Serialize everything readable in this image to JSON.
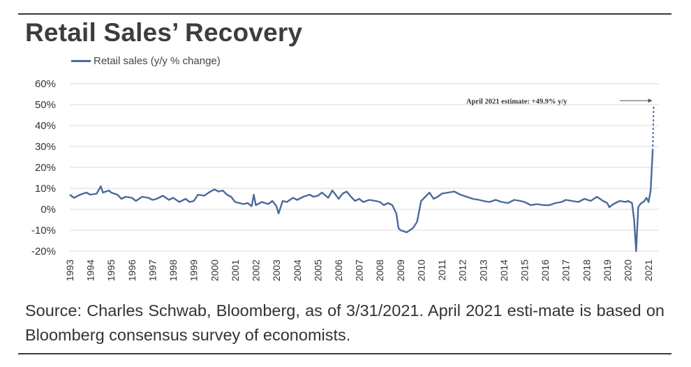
{
  "title": "Retail Sales’ Recovery",
  "source_text": "Source: Charles Schwab, Bloomberg, as of 3/31/2021. April 2021 esti-mate is based on Bloomberg consensus survey of economists.",
  "colors": {
    "series": "#4a6a9c",
    "grid": "#d9d9d9",
    "text": "#333333"
  },
  "chart_data": {
    "type": "line",
    "title": "",
    "xlabel": "",
    "ylabel": "",
    "ylim": [
      -20,
      60
    ],
    "xlim": [
      1993,
      2021.5
    ],
    "grid": true,
    "legend_placement": "top-left",
    "y_ticks": [
      60,
      50,
      40,
      30,
      20,
      10,
      0,
      -10,
      -20
    ],
    "y_tick_labels": [
      "60%",
      "50%",
      "40%",
      "30%",
      "20%",
      "10%",
      "0%",
      "-10%",
      "-20%"
    ],
    "x_tick_labels": [
      "1993",
      "1994",
      "1995",
      "1996",
      "1997",
      "1998",
      "1999",
      "2000",
      "2001",
      "2002",
      "2003",
      "2004",
      "2005",
      "2006",
      "2007",
      "2008",
      "2009",
      "2010",
      "2011",
      "2012",
      "2013",
      "2014",
      "2015",
      "2016",
      "2017",
      "2018",
      "2019",
      "2020",
      "2021"
    ],
    "annotation": {
      "text": "April 2021 estimate: +49.9% y/y",
      "x": 2021.25,
      "y": 49.9
    },
    "series": [
      {
        "name": "Retail sales (y/y % change)",
        "points": [
          [
            1993.0,
            7
          ],
          [
            1993.2,
            5.5
          ],
          [
            1993.5,
            7
          ],
          [
            1993.8,
            8
          ],
          [
            1994.0,
            7
          ],
          [
            1994.3,
            7.5
          ],
          [
            1994.5,
            11
          ],
          [
            1994.6,
            8
          ],
          [
            1994.9,
            9
          ],
          [
            1995.0,
            8
          ],
          [
            1995.3,
            7
          ],
          [
            1995.5,
            5
          ],
          [
            1995.7,
            6
          ],
          [
            1996.0,
            5.5
          ],
          [
            1996.2,
            4
          ],
          [
            1996.5,
            6
          ],
          [
            1996.8,
            5.5
          ],
          [
            1997.0,
            4.5
          ],
          [
            1997.2,
            5
          ],
          [
            1997.5,
            6.5
          ],
          [
            1997.8,
            4.5
          ],
          [
            1998.0,
            5.5
          ],
          [
            1998.3,
            3.5
          ],
          [
            1998.6,
            5
          ],
          [
            1998.8,
            3.5
          ],
          [
            1999.0,
            4
          ],
          [
            1999.2,
            7
          ],
          [
            1999.5,
            6.5
          ],
          [
            1999.8,
            8.5
          ],
          [
            2000.0,
            9.5
          ],
          [
            2000.2,
            8.5
          ],
          [
            2000.4,
            9
          ],
          [
            2000.6,
            7
          ],
          [
            2000.8,
            6
          ],
          [
            2001.0,
            3.5
          ],
          [
            2001.2,
            3
          ],
          [
            2001.4,
            2.5
          ],
          [
            2001.6,
            3
          ],
          [
            2001.8,
            1.5
          ],
          [
            2001.9,
            7
          ],
          [
            2002.0,
            2
          ],
          [
            2002.3,
            3.5
          ],
          [
            2002.6,
            2.5
          ],
          [
            2002.8,
            4
          ],
          [
            2003.0,
            1.5
          ],
          [
            2003.1,
            -2
          ],
          [
            2003.3,
            4
          ],
          [
            2003.5,
            3.5
          ],
          [
            2003.8,
            5.5
          ],
          [
            2004.0,
            4.5
          ],
          [
            2004.3,
            6
          ],
          [
            2004.6,
            7
          ],
          [
            2004.8,
            6
          ],
          [
            2005.0,
            6.5
          ],
          [
            2005.2,
            8
          ],
          [
            2005.5,
            5.5
          ],
          [
            2005.7,
            9
          ],
          [
            2005.9,
            6.5
          ],
          [
            2006.0,
            5
          ],
          [
            2006.2,
            7.5
          ],
          [
            2006.4,
            8.5
          ],
          [
            2006.6,
            6
          ],
          [
            2006.8,
            4
          ],
          [
            2007.0,
            5
          ],
          [
            2007.2,
            3.5
          ],
          [
            2007.5,
            4.5
          ],
          [
            2007.8,
            4
          ],
          [
            2008.0,
            3.5
          ],
          [
            2008.2,
            2
          ],
          [
            2008.4,
            3
          ],
          [
            2008.6,
            2
          ],
          [
            2008.8,
            -2
          ],
          [
            2008.9,
            -9
          ],
          [
            2009.0,
            -10
          ],
          [
            2009.3,
            -11
          ],
          [
            2009.6,
            -9
          ],
          [
            2009.8,
            -6
          ],
          [
            2010.0,
            4
          ],
          [
            2010.2,
            6
          ],
          [
            2010.4,
            8
          ],
          [
            2010.6,
            5
          ],
          [
            2010.8,
            6
          ],
          [
            2011.0,
            7.5
          ],
          [
            2011.3,
            8
          ],
          [
            2011.6,
            8.5
          ],
          [
            2011.9,
            7
          ],
          [
            2012.2,
            6
          ],
          [
            2012.5,
            5
          ],
          [
            2012.8,
            4.5
          ],
          [
            2013.0,
            4
          ],
          [
            2013.3,
            3.5
          ],
          [
            2013.6,
            4.5
          ],
          [
            2013.9,
            3.5
          ],
          [
            2014.2,
            3
          ],
          [
            2014.5,
            4.5
          ],
          [
            2014.8,
            4
          ],
          [
            2015.0,
            3.5
          ],
          [
            2015.3,
            2
          ],
          [
            2015.6,
            2.5
          ],
          [
            2015.9,
            2
          ],
          [
            2016.2,
            2
          ],
          [
            2016.5,
            3
          ],
          [
            2016.8,
            3.5
          ],
          [
            2017.0,
            4.5
          ],
          [
            2017.3,
            4
          ],
          [
            2017.6,
            3.5
          ],
          [
            2017.9,
            5
          ],
          [
            2018.2,
            4
          ],
          [
            2018.5,
            6
          ],
          [
            2018.8,
            4
          ],
          [
            2019.0,
            3
          ],
          [
            2019.1,
            1
          ],
          [
            2019.3,
            2.5
          ],
          [
            2019.6,
            4
          ],
          [
            2019.9,
            3.5
          ],
          [
            2020.0,
            4
          ],
          [
            2020.2,
            3
          ],
          [
            2020.3,
            -5
          ],
          [
            2020.4,
            -20
          ],
          [
            2020.5,
            1
          ],
          [
            2020.6,
            2.5
          ],
          [
            2020.8,
            4
          ],
          [
            2020.9,
            5.5
          ],
          [
            2021.0,
            3.5
          ],
          [
            2021.1,
            9
          ],
          [
            2021.2,
            28
          ]
        ],
        "estimate_points": [
          [
            2021.2,
            28
          ],
          [
            2021.25,
            49.9
          ]
        ]
      }
    ]
  }
}
